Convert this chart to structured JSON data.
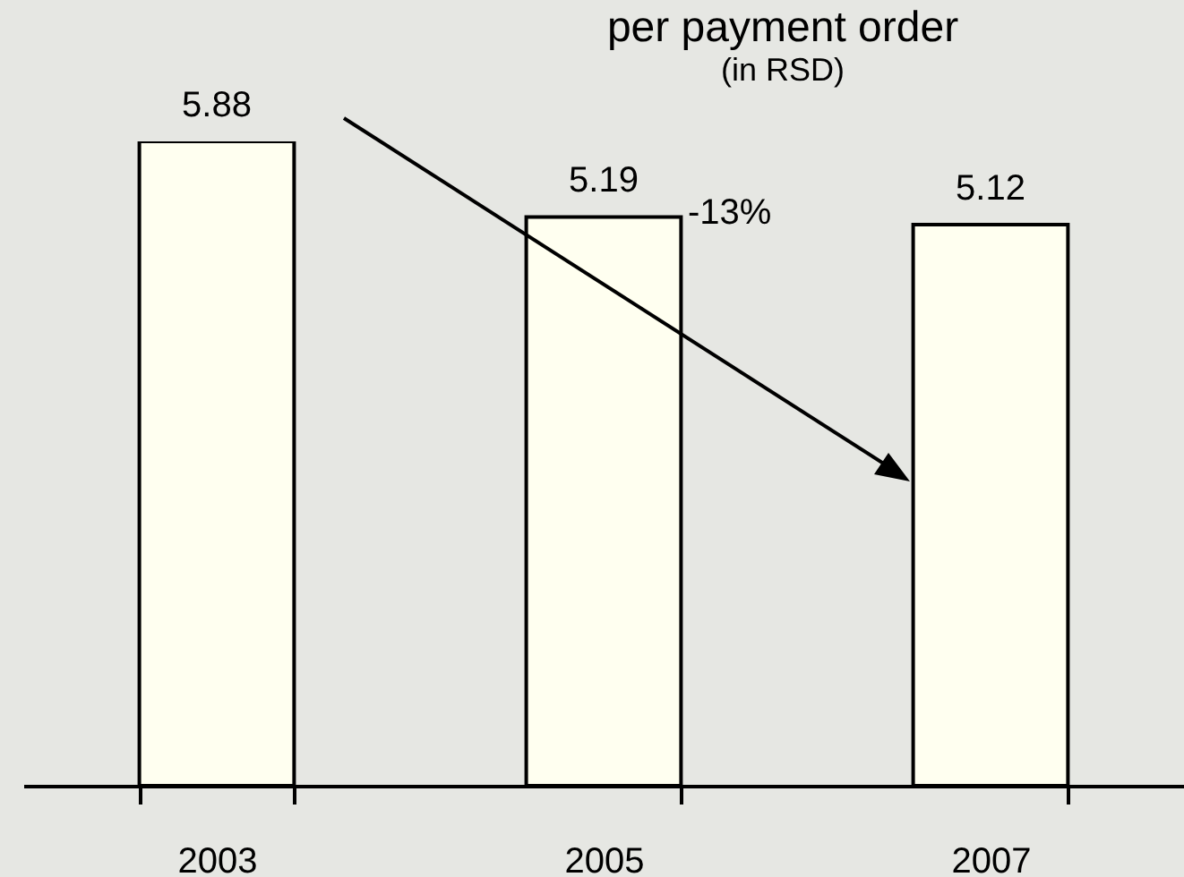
{
  "chart_data": {
    "type": "bar",
    "title": "per payment order",
    "subtitle": "(in RSD)",
    "categories": [
      "2003",
      "2005",
      "2007"
    ],
    "values": [
      5.88,
      5.19,
      5.12
    ],
    "color": "#fffff0",
    "tick_labels": "x",
    "data_labels": true,
    "annotations": [
      "-13%"
    ]
  }
}
